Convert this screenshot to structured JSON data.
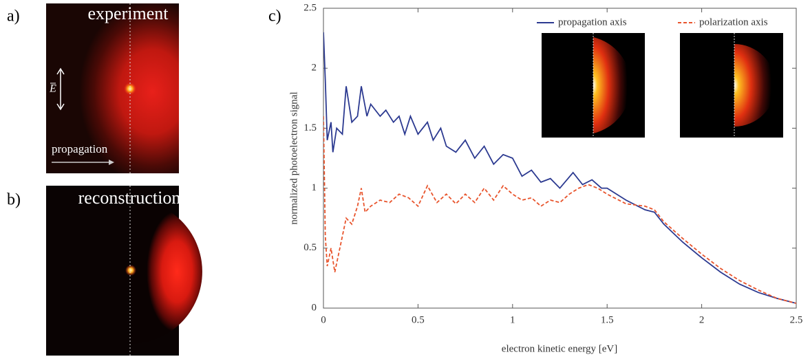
{
  "panels": {
    "a": {
      "label": "a)",
      "title": "experiment",
      "field_label": "E",
      "arrow_label": "propagation"
    },
    "b": {
      "label": "b)",
      "title": "reconstruction"
    },
    "c": {
      "label": "c)"
    }
  },
  "chart_data": {
    "type": "line",
    "xlabel": "electron kinetic energy [eV]",
    "ylabel": "normalized photoelectron signal",
    "xlim": [
      0,
      2.5
    ],
    "ylim": [
      0,
      2.5
    ],
    "xticks": [
      0,
      0.5,
      1,
      1.5,
      2,
      2.5
    ],
    "yticks": [
      0,
      0.5,
      1,
      1.5,
      2,
      2.5
    ],
    "series": [
      {
        "name": "propagation axis",
        "color": "#2b3990",
        "style": "solid",
        "x": [
          0,
          0.01,
          0.02,
          0.04,
          0.05,
          0.07,
          0.1,
          0.12,
          0.15,
          0.18,
          0.2,
          0.23,
          0.25,
          0.3,
          0.33,
          0.37,
          0.4,
          0.43,
          0.46,
          0.5,
          0.55,
          0.58,
          0.62,
          0.65,
          0.7,
          0.75,
          0.8,
          0.85,
          0.9,
          0.95,
          1.0,
          1.05,
          1.1,
          1.15,
          1.2,
          1.25,
          1.32,
          1.37,
          1.42,
          1.47,
          1.5,
          1.6,
          1.7,
          1.75,
          1.8,
          1.9,
          2.0,
          2.1,
          2.2,
          2.3,
          2.4,
          2.5
        ],
        "values": [
          2.3,
          1.9,
          1.4,
          1.55,
          1.3,
          1.5,
          1.45,
          1.85,
          1.55,
          1.6,
          1.85,
          1.6,
          1.7,
          1.6,
          1.65,
          1.55,
          1.6,
          1.45,
          1.6,
          1.45,
          1.55,
          1.4,
          1.5,
          1.35,
          1.3,
          1.4,
          1.25,
          1.35,
          1.2,
          1.28,
          1.25,
          1.1,
          1.15,
          1.05,
          1.08,
          1.0,
          1.13,
          1.03,
          1.07,
          1.0,
          1.0,
          0.9,
          0.82,
          0.8,
          0.7,
          0.55,
          0.42,
          0.3,
          0.2,
          0.13,
          0.08,
          0.04
        ]
      },
      {
        "name": "polarization axis",
        "color": "#e8532b",
        "style": "dashed",
        "x": [
          0,
          0.01,
          0.02,
          0.04,
          0.06,
          0.08,
          0.1,
          0.12,
          0.15,
          0.18,
          0.2,
          0.22,
          0.25,
          0.3,
          0.35,
          0.4,
          0.45,
          0.5,
          0.55,
          0.6,
          0.65,
          0.7,
          0.75,
          0.8,
          0.85,
          0.9,
          0.95,
          1.0,
          1.05,
          1.1,
          1.15,
          1.2,
          1.25,
          1.3,
          1.35,
          1.4,
          1.45,
          1.5,
          1.6,
          1.7,
          1.75,
          1.8,
          1.9,
          2.0,
          2.1,
          2.2,
          2.3,
          2.4,
          2.5
        ],
        "values": [
          1.6,
          0.6,
          0.35,
          0.5,
          0.3,
          0.45,
          0.6,
          0.75,
          0.7,
          0.85,
          1.0,
          0.8,
          0.85,
          0.9,
          0.88,
          0.95,
          0.92,
          0.85,
          1.02,
          0.88,
          0.95,
          0.87,
          0.95,
          0.88,
          1.0,
          0.9,
          1.02,
          0.95,
          0.9,
          0.92,
          0.85,
          0.9,
          0.88,
          0.95,
          1.0,
          1.03,
          1.0,
          0.95,
          0.87,
          0.85,
          0.82,
          0.72,
          0.58,
          0.45,
          0.33,
          0.23,
          0.15,
          0.08,
          0.04
        ]
      }
    ]
  }
}
